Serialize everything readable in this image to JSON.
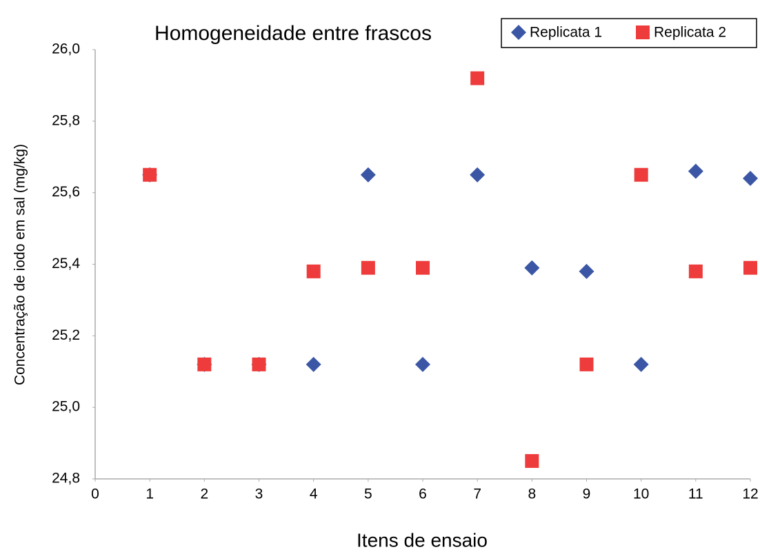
{
  "chart_data": {
    "type": "scatter",
    "title": "Homogeneidade entre frascos",
    "x_label": "Itens de ensaio",
    "y_label": "Concentração de iodo em sal (mg/kg)",
    "xlim": [
      0,
      12
    ],
    "xticks": [
      0,
      1,
      2,
      3,
      4,
      5,
      6,
      7,
      8,
      9,
      10,
      11,
      12
    ],
    "ylim": [
      24.8,
      26.0
    ],
    "yticks": [
      {
        "value": 24.8,
        "label": "24,8"
      },
      {
        "value": 25.0,
        "label": "25,0"
      },
      {
        "value": 25.2,
        "label": "25,2"
      },
      {
        "value": 25.4,
        "label": "25,4"
      },
      {
        "value": 25.6,
        "label": "25,6"
      },
      {
        "value": 25.8,
        "label": "25,8"
      },
      {
        "value": 26.0,
        "label": "26,0"
      }
    ],
    "grid": false,
    "legend": "top-right",
    "series": [
      {
        "name": "Replicata 1",
        "color": "#3a56a5",
        "marker": "diamond",
        "x": [
          1,
          2,
          3,
          4,
          5,
          6,
          7,
          8,
          9,
          10,
          11,
          12
        ],
        "values": [
          25.65,
          25.12,
          25.12,
          25.12,
          25.65,
          25.12,
          25.65,
          25.39,
          25.38,
          25.12,
          25.66,
          25.64
        ]
      },
      {
        "name": "Replicata 2",
        "color": "#ee3b3b",
        "marker": "square",
        "x": [
          1,
          2,
          3,
          4,
          5,
          6,
          7,
          8,
          9,
          10,
          11,
          12
        ],
        "values": [
          25.65,
          25.12,
          25.12,
          25.38,
          25.39,
          25.39,
          25.92,
          24.85,
          25.12,
          25.65,
          25.38,
          25.39
        ]
      }
    ]
  }
}
